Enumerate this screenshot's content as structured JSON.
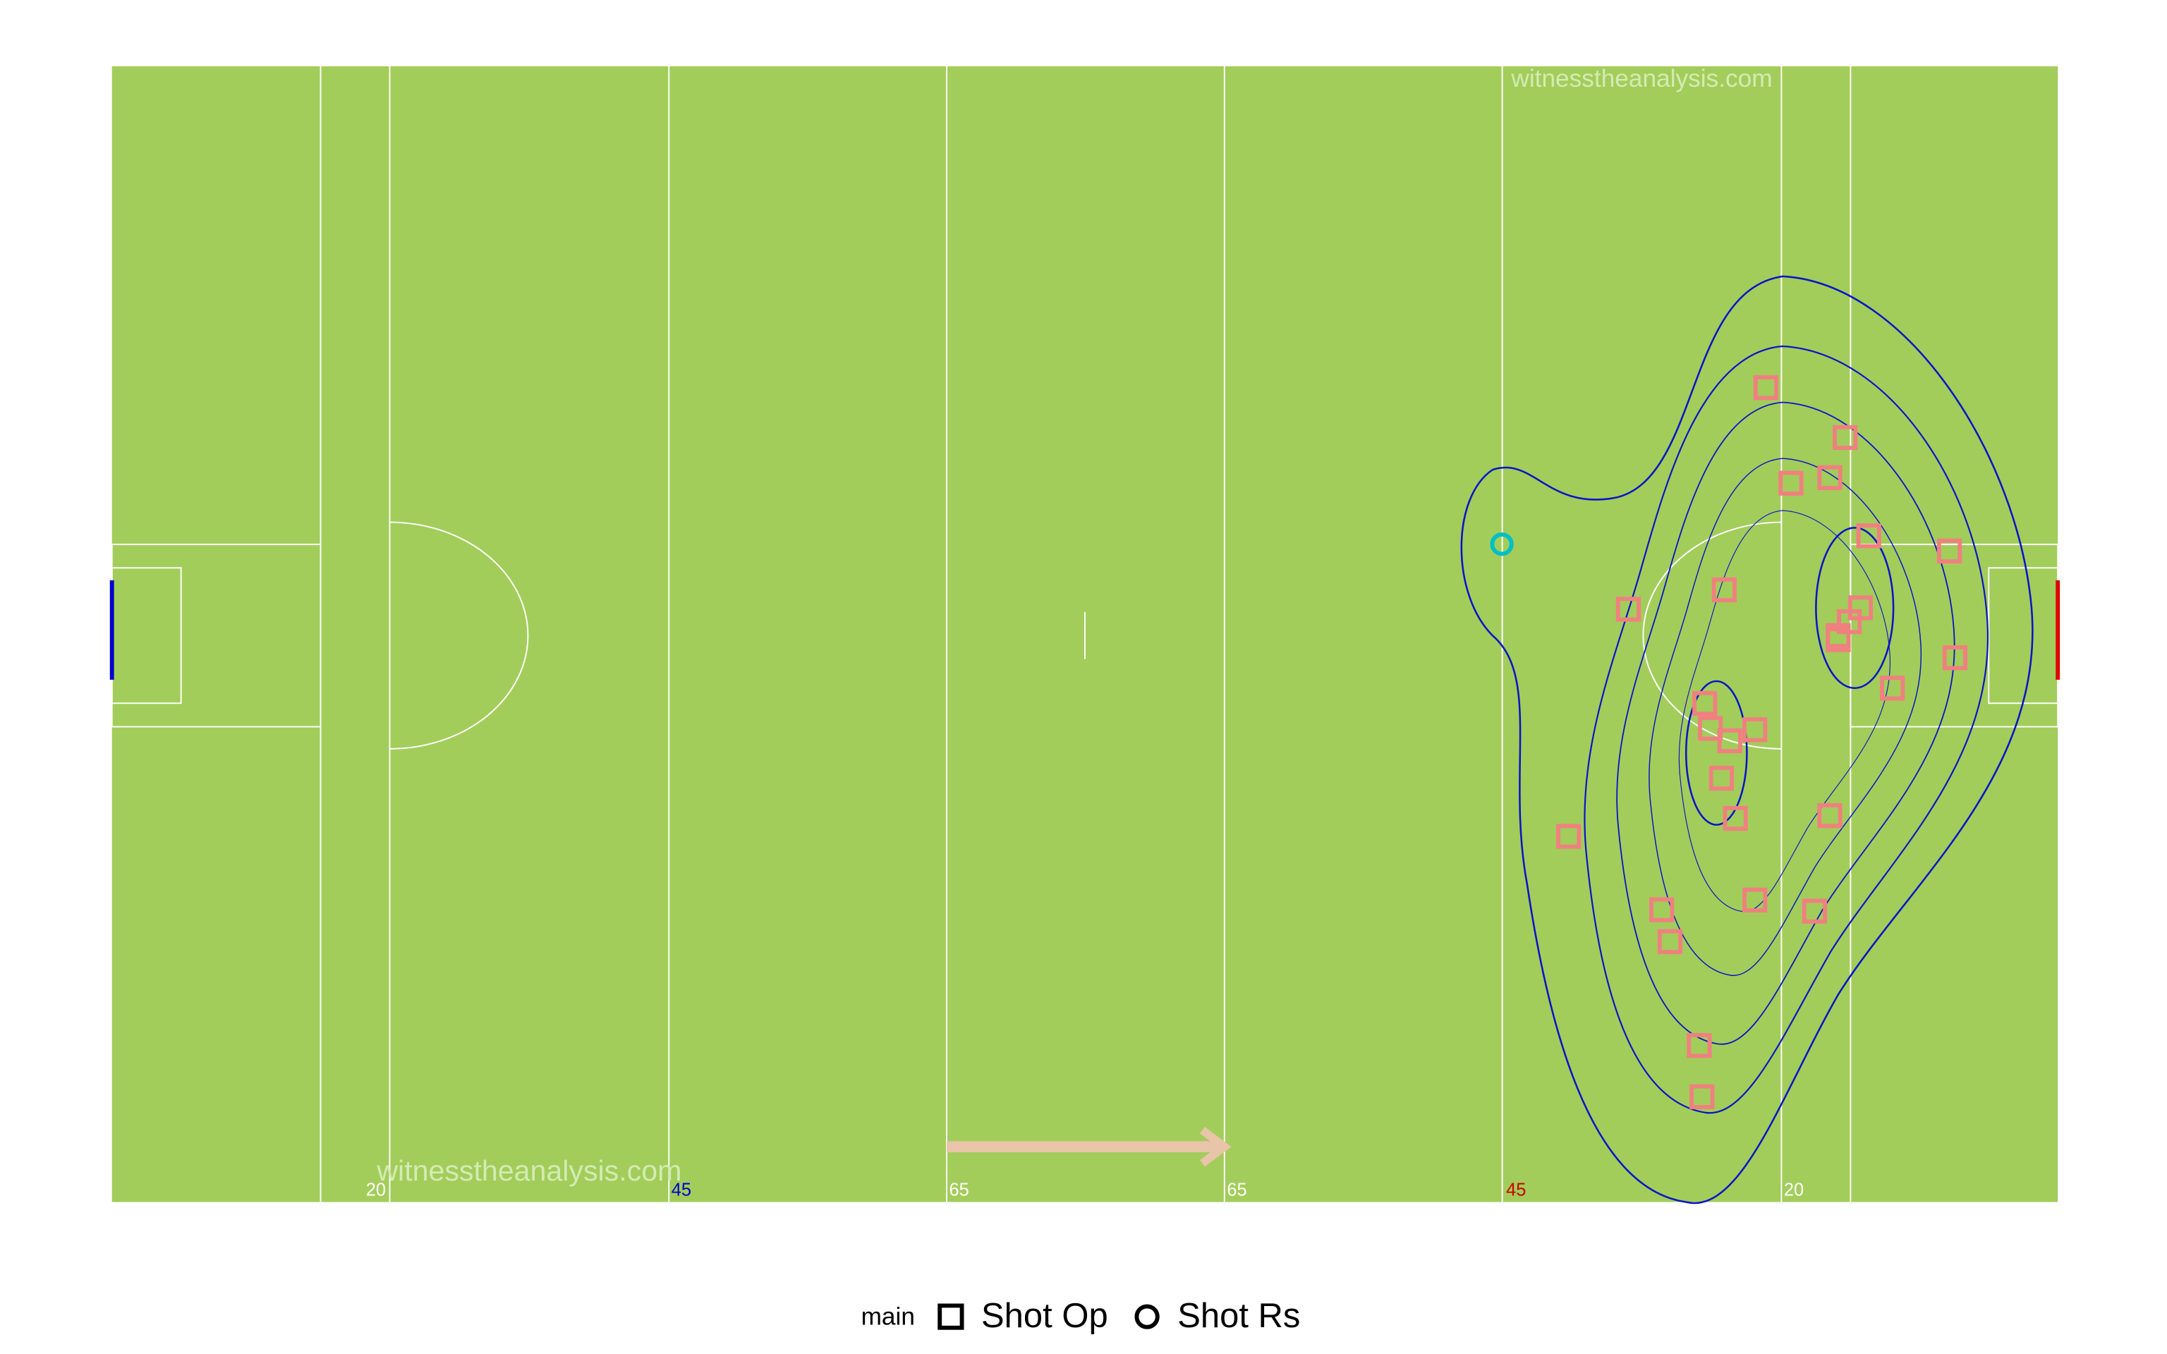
{
  "chart_data": {
    "type": "scatter",
    "watermark": "witnesstheanalysis.com",
    "pitch_labels": [
      "20",
      "45",
      "65",
      "65",
      "45",
      "20"
    ],
    "pitch_label_colors": [
      "#ffffff",
      "#0000cc",
      "#ffffff",
      "#ffffff",
      "#cc0000",
      "#ffffff"
    ],
    "xlim": [
      0,
      140
    ],
    "ylim": [
      0,
      82
    ],
    "legend_title": "main",
    "series": [
      {
        "name": "Shot Op",
        "color": "#f08080",
        "marker": "square",
        "x": [
          119.0,
          124.7,
          120.8,
          123.6,
          126.4,
          132.2,
          116.0,
          109.1,
          125.8,
          125.0,
          124.2,
          124.2,
          132.6,
          128.1,
          114.6,
          115.0,
          118.2,
          116.4,
          115.8,
          116.8,
          123.6,
          104.8,
          111.5,
          118.2,
          122.5,
          112.1,
          114.2,
          114.4
        ],
        "y": [
          58.8,
          55.2,
          51.9,
          52.3,
          48.1,
          47.0,
          44.2,
          42.8,
          42.9,
          41.9,
          40.9,
          40.6,
          39.3,
          37.1,
          36.0,
          34.2,
          34.1,
          33.3,
          30.6,
          27.7,
          27.9,
          26.4,
          21.1,
          21.8,
          21.0,
          18.8,
          11.3,
          7.6
        ]
      },
      {
        "name": "Shot Rs",
        "color": "#00bfc4",
        "marker": "circle",
        "x": [
          100.0
        ],
        "y": [
          47.5
        ]
      }
    ]
  }
}
